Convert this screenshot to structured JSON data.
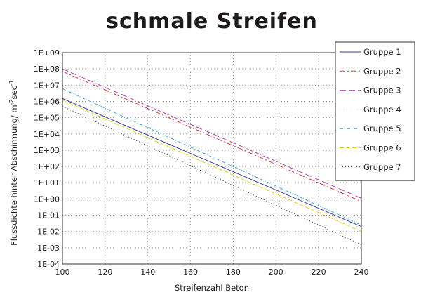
{
  "chart_data": {
    "type": "line",
    "title": "schmale Streifen",
    "xlabel": "Streifenzahl Beton",
    "ylabel_main": "Flussdichte hinter Abschirmung/ m",
    "ylabel_sup1": "-2",
    "ylabel_mid": "sec",
    "ylabel_sup2": "-1",
    "xlim": [
      100,
      240
    ],
    "ylim_log10": [
      -4,
      9
    ],
    "y_scale": "log",
    "grid": true,
    "legend_position": "top-right",
    "x_ticks": [
      100,
      120,
      140,
      160,
      180,
      200,
      220,
      240
    ],
    "y_ticks": [
      "1E+09",
      "1E+08",
      "1E+07",
      "1E+06",
      "1E+05",
      "1E+04",
      "1E+03",
      "1E+02",
      "1E+01",
      "1E+00",
      "1E-01",
      "1E-02",
      "1E-03",
      "1E-04"
    ],
    "series": [
      {
        "name": "Gruppe 1",
        "color": "#3a3f9a",
        "dash": "none",
        "x": [
          100,
          240
        ],
        "y": [
          1500000.0,
          0.02
        ]
      },
      {
        "name": "Gruppe 2",
        "color": "#d03a3a",
        "dash": "8,3,2,3",
        "x": [
          100,
          240
        ],
        "y": [
          70000000.0,
          0.7
        ]
      },
      {
        "name": "Gruppe 3",
        "color": "#b040b0",
        "dash": "9,4",
        "x": [
          100,
          240
        ],
        "y": [
          100000000.0,
          1.1
        ]
      },
      {
        "name": "Gruppe 4",
        "color": "#e8e8a0",
        "dash": "1,4",
        "x": [
          100,
          240
        ],
        "y": [
          1000000.0,
          0.015
        ]
      },
      {
        "name": "Gruppe 5",
        "color": "#3aa8d8",
        "dash": "5,2,1,2",
        "x": [
          100,
          240
        ],
        "y": [
          6000000.0,
          0.025
        ]
      },
      {
        "name": "Gruppe 6",
        "color": "#e0d020",
        "dash": "6,3",
        "x": [
          100,
          240
        ],
        "y": [
          1200000.0,
          0.01
        ]
      },
      {
        "name": "Gruppe 7",
        "color": "#333344",
        "dash": "1,3",
        "x": [
          100,
          240
        ],
        "y": [
          500000.0,
          0.0015
        ]
      }
    ]
  }
}
